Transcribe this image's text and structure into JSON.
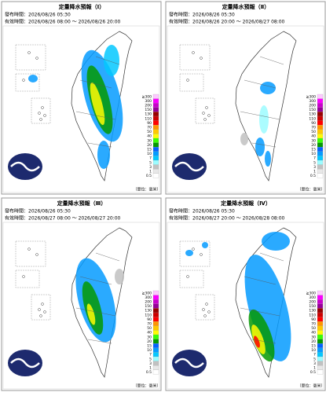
{
  "panels": [
    {
      "title": "定量降水預報（Ⅰ）",
      "issued": "發布時間：2026/08/26 05:30",
      "valid": "有效時間：2026/08/26 08:00 ～ 2026/08/26 20:00"
    },
    {
      "title": "定量降水預報（Ⅱ）",
      "issued": "發布時間：2026/08/26 05:30",
      "valid": "有效時間：2026/08/26 20:00 ～ 2026/08/27 08:00"
    },
    {
      "title": "定量降水預報（Ⅲ）",
      "issued": "發布時間：2026/08/26 05:30",
      "valid": "有效時間：2026/08/27 08:00 ～ 2026/08/27 20:00"
    },
    {
      "title": "定量降水預報（Ⅳ）",
      "issued": "發布時間：2026/08/26 05:30",
      "valid": "有效時間：2026/08/27 20:00 ～ 2026/08/28 08:00"
    }
  ],
  "legend": {
    "labels": [
      "≧300",
      "300",
      "200",
      "150",
      "130",
      "110",
      "90",
      "70",
      "50",
      "40",
      "30",
      "20",
      "15",
      "10",
      "7",
      "5",
      "3",
      "1",
      "0.5"
    ],
    "unit": "（單位：毫米）"
  }
}
